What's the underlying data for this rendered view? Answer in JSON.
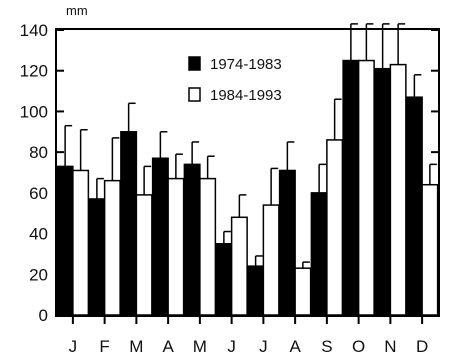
{
  "chart_data": {
    "type": "bar",
    "unit": "mm",
    "categories": [
      "J",
      "F",
      "M",
      "A",
      "M",
      "J",
      "J",
      "A",
      "S",
      "O",
      "N",
      "D"
    ],
    "series": [
      {
        "name": "1974-1983",
        "color": "#000000",
        "values": [
          73,
          57,
          90,
          77,
          74,
          35,
          24,
          71,
          60,
          125,
          121,
          107
        ],
        "errors": [
          20,
          10,
          14,
          13,
          11,
          6,
          5,
          14,
          14,
          18,
          22,
          11
        ]
      },
      {
        "name": "1984-1993",
        "color": "#ffffff",
        "values": [
          71,
          66,
          59,
          67,
          67,
          48,
          54,
          23,
          86,
          125,
          123,
          64
        ],
        "errors": [
          20,
          21,
          14,
          12,
          11,
          11,
          18,
          3,
          20,
          18,
          20,
          10
        ]
      }
    ],
    "ylim": [
      0,
      140
    ],
    "yticks": [
      0,
      20,
      40,
      60,
      80,
      100,
      120,
      140
    ],
    "legend_position": "top-center",
    "grid": false
  }
}
